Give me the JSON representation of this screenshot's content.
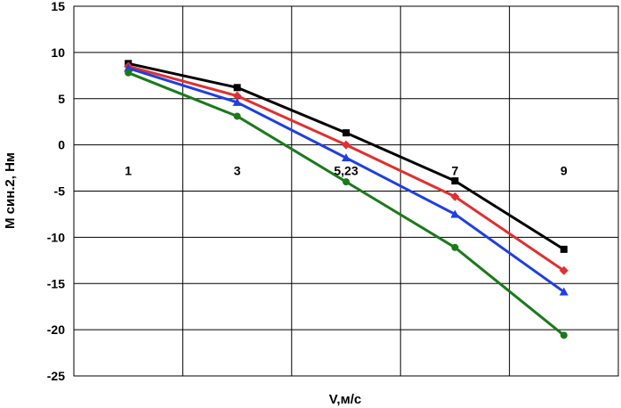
{
  "chart_data": {
    "type": "line",
    "title": "",
    "xlabel": "V,м/с",
    "ylabel": "М син.2, Нм",
    "categories": [
      "1",
      "3",
      "5,23",
      "7",
      "9"
    ],
    "ylim": [
      -25,
      15
    ],
    "yticks": [
      "15",
      "10",
      "5",
      "0",
      "-5",
      "-10",
      "-15",
      "-20",
      "-25"
    ],
    "grid": true,
    "legend": "none",
    "series": [
      {
        "color": "#000000",
        "marker": "square",
        "values": [
          8.8,
          6.2,
          1.3,
          -3.9,
          -11.3
        ]
      },
      {
        "color": "#e03030",
        "marker": "diamond",
        "values": [
          8.5,
          5.3,
          0.0,
          -5.6,
          -13.6
        ]
      },
      {
        "color": "#1f3fe0",
        "marker": "triangle",
        "values": [
          8.3,
          4.6,
          -1.4,
          -7.5,
          -15.9
        ]
      },
      {
        "color": "#1a7a1a",
        "marker": "circle",
        "values": [
          7.8,
          3.1,
          -4.0,
          -11.1,
          -20.6
        ]
      }
    ]
  }
}
